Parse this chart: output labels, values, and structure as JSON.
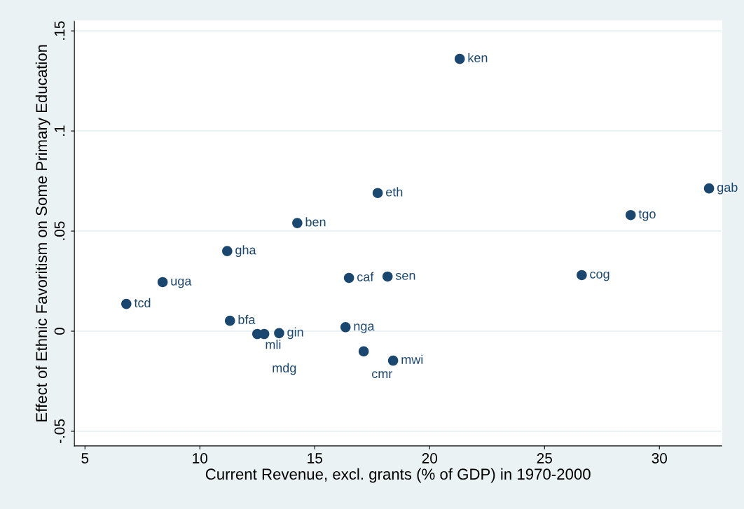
{
  "chart_data": {
    "type": "scatter",
    "xlabel": "Current Revenue, excl. grants (% of GDP) in 1970-2000",
    "ylabel": "Effect of Ethnic Favoritism on Some Primary Education",
    "x": [
      21.31,
      17.74,
      32.16,
      28.75,
      14.24,
      11.19,
      26.62,
      16.49,
      18.17,
      8.38,
      6.8,
      11.31,
      12.5,
      12.8,
      13.45,
      16.34,
      17.13,
      18.41
    ],
    "values": [
      0.136,
      0.069,
      0.0713,
      0.058,
      0.054,
      0.04,
      0.028,
      0.0266,
      0.0273,
      0.0245,
      0.0136,
      0.0052,
      -0.0014,
      -0.0014,
      -0.001,
      0.002,
      -0.0101,
      -0.0147
    ],
    "value_labels": [
      "ken",
      "eth",
      "gab",
      "tgo",
      "ben",
      "gha",
      "cog",
      "caf",
      "sen",
      "uga",
      "tcd",
      "bfa",
      "mli",
      "mdg",
      "gin",
      "nga",
      "cmr",
      "mwi"
    ],
    "color": "#1a476f",
    "marker": "circle",
    "xlim": [
      4.54,
      32.71
    ],
    "ylim": [
      -0.0573,
      0.155
    ],
    "xticks": [
      5,
      10,
      15,
      20,
      25,
      30
    ],
    "yticks": [
      {
        "value": -0.05,
        "label": "-.05"
      },
      {
        "value": 0,
        "label": "0"
      },
      {
        "value": 0.05,
        "label": ".05"
      },
      {
        "value": 0.1,
        "label": ".1"
      },
      {
        "value": 0.15,
        "label": ".15"
      }
    ],
    "grid": "y"
  }
}
